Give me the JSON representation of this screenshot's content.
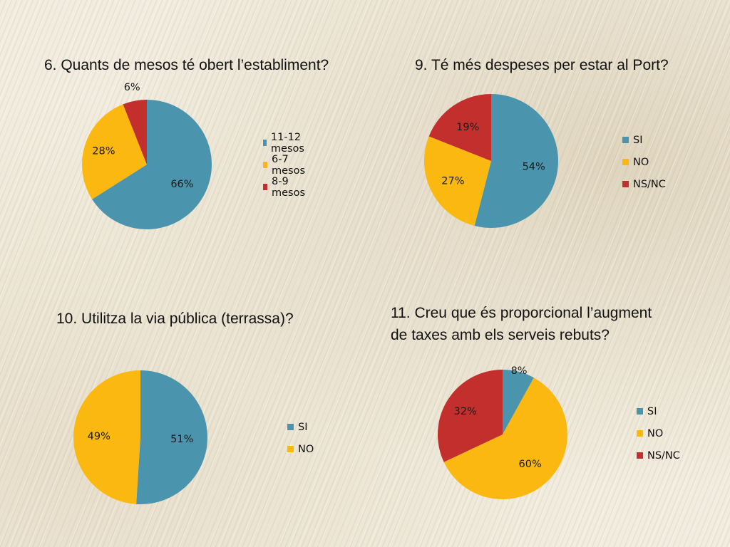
{
  "chart_data": [
    {
      "type": "pie",
      "title": "6. Quants de mesos té obert l’establiment?",
      "categories": [
        "11-12 mesos",
        "6-7 mesos",
        "8-9 mesos"
      ],
      "values": [
        66,
        28,
        6
      ],
      "labels": [
        "66%",
        "28%",
        "6%"
      ],
      "colors": [
        "#4a95ad",
        "#fbb811",
        "#c22f2d"
      ],
      "legend_position": "right"
    },
    {
      "type": "pie",
      "title": "9. Té més despeses per estar al Port?",
      "categories": [
        "SI",
        "NO",
        "NS/NC"
      ],
      "values": [
        54,
        27,
        19
      ],
      "labels": [
        "54%",
        "27%",
        "19%"
      ],
      "colors": [
        "#4a95ad",
        "#fbb811",
        "#c22f2d"
      ],
      "legend_position": "right"
    },
    {
      "type": "pie",
      "title": "10. Utilitza la via pública (terrassa)?",
      "categories": [
        "SI",
        "NO"
      ],
      "values": [
        51,
        49
      ],
      "labels": [
        "51%",
        "49%"
      ],
      "colors": [
        "#4a95ad",
        "#fbb811"
      ],
      "legend_position": "right"
    },
    {
      "type": "pie",
      "title_lines": [
        "11. Creu que és proporcional l’augment",
        "de taxes amb els serveis rebuts?"
      ],
      "categories": [
        "SI",
        "NO",
        "NS/NC"
      ],
      "values": [
        8,
        60,
        32
      ],
      "labels": [
        "8%",
        "60%",
        "32%"
      ],
      "colors": [
        "#4a95ad",
        "#fbb811",
        "#c22f2d"
      ],
      "legend_position": "right"
    }
  ]
}
